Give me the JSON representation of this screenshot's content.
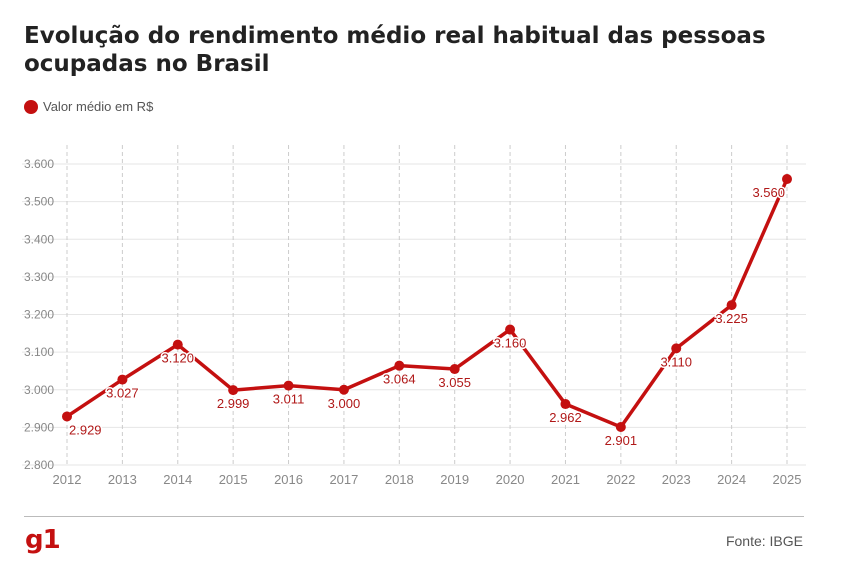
{
  "header": {
    "title": "Evolução do rendimento médio real habitual das pessoas ocupadas no Brasil"
  },
  "footer": {
    "logo": "g1",
    "source": "Fonte: IBGE"
  },
  "colors": {
    "series": "#c41010",
    "grid": "#e6e6e6",
    "vgrid": "#cccccc",
    "tick_text": "#888888",
    "label_text": "#b01818"
  },
  "chart_data": {
    "type": "line",
    "legend": {
      "position": "top-left",
      "entries": [
        "Valor médio em R$"
      ]
    },
    "series": [
      {
        "name": "Valor médio em R$",
        "values": [
          2929,
          3027,
          3120,
          2999,
          3011,
          3000,
          3064,
          3055,
          3160,
          2962,
          2901,
          3110,
          3225,
          3560
        ],
        "labels": [
          "2.929",
          "3.027",
          "3.120",
          "2.999",
          "3.011",
          "3.000",
          "3.064",
          "3.055",
          "3.160",
          "2.962",
          "2.901",
          "3.110",
          "3.225",
          "3.560"
        ]
      }
    ],
    "x": [
      "2012",
      "2013",
      "2014",
      "2015",
      "2016",
      "2017",
      "2018",
      "2019",
      "2020",
      "2021",
      "2022",
      "2023",
      "2024",
      "2025"
    ],
    "ylim": [
      2800,
      3600
    ],
    "yticks": [
      2800,
      2900,
      3000,
      3100,
      3200,
      3300,
      3400,
      3500,
      3600
    ],
    "ytick_labels": [
      "2.800",
      "2.900",
      "3.000",
      "3.100",
      "3.200",
      "3.300",
      "3.400",
      "3.500",
      "3.600"
    ],
    "grid": true,
    "title": "Evolução do rendimento médio real habitual das pessoas ocupadas no Brasil",
    "xlabel": "",
    "ylabel": ""
  }
}
